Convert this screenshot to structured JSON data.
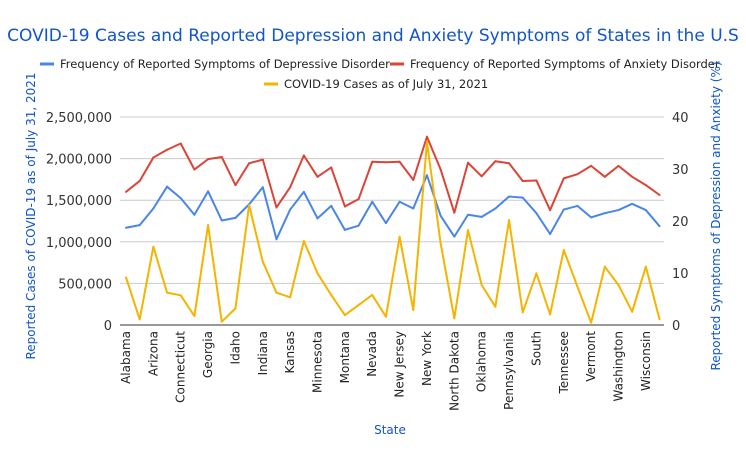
{
  "chart_data": {
    "type": "line",
    "title": "COVID-19 Cases and Reported Depression and Anxiety Symptoms of States in the U.S",
    "xlabel": "State",
    "ylabel_left": "Reported Cases of COVID-19 as of July 31, 2021",
    "ylabel_right": "Reported Symptoms of Depression and Anxiety (%)",
    "ylim_left": [
      0,
      2500000
    ],
    "ylim_right": [
      0,
      40
    ],
    "yticks_left": [
      "0",
      "500,000",
      "1,000,000",
      "1,500,000",
      "2,000,000",
      "2,500,000"
    ],
    "yticks_right": [
      "0",
      "10",
      "20",
      "30",
      "40"
    ],
    "grid": true,
    "legend_position": "top",
    "categories": [
      "Alabama",
      "",
      "Arizona",
      "",
      "Connecticut",
      "",
      "Georgia",
      "",
      "Idaho",
      "",
      "Indiana",
      "",
      "Kansas",
      "",
      "Minnesota",
      "",
      "Montana",
      "",
      "Nevada",
      "",
      "New Jersey",
      "",
      "New York",
      "",
      "North Dakota",
      "",
      "Oklahoma",
      "",
      "Pennsylvania",
      "",
      "South",
      "",
      "Tennessee",
      "",
      "Vermont",
      "",
      "Washington",
      "",
      "Wisconsin",
      ""
    ],
    "series": [
      {
        "name": "Frequency of Reported Symptoms of Depressive Disorder",
        "axis": "right",
        "color": "#4a86e8",
        "values": [
          18.7,
          19.2,
          22.4,
          26.6,
          24.4,
          21.2,
          25.7,
          20.1,
          20.6,
          23.2,
          26.5,
          16.5,
          22.2,
          25.6,
          20.5,
          22.9,
          18.3,
          19.1,
          23.7,
          19.6,
          23.7,
          22.4,
          28.8,
          21.0,
          17.0,
          21.2,
          20.8,
          22.4,
          24.7,
          24.5,
          21.5,
          17.5,
          22.2,
          22.9,
          20.7,
          21.5,
          22.1,
          23.3,
          22.1,
          19.0
        ]
      },
      {
        "name": "Frequency of Reported Symptoms of Anxiety Disorder",
        "axis": "right",
        "color": "#db4437",
        "values": [
          25.6,
          27.7,
          32.2,
          33.7,
          34.9,
          29.9,
          31.9,
          32.3,
          26.9,
          31.1,
          31.8,
          22.6,
          26.5,
          32.6,
          28.5,
          30.3,
          22.8,
          24.2,
          31.4,
          31.3,
          31.4,
          27.9,
          36.2,
          29.9,
          21.6,
          31.2,
          28.6,
          31.5,
          31.1,
          27.7,
          27.8,
          22.1,
          28.2,
          29.0,
          30.6,
          28.5,
          30.6,
          28.5,
          26.9,
          25.0
        ]
      },
      {
        "name": "COVID-19 Cases as of July 31, 2021",
        "axis": "left",
        "color": "#f4b400",
        "values": [
          573000,
          68000,
          941000,
          389000,
          357000,
          108000,
          1200000,
          40000,
          200000,
          1440000,
          761000,
          389000,
          333000,
          1010000,
          621000,
          361000,
          120000,
          240000,
          361000,
          100000,
          1060000,
          180000,
          2200000,
          982000,
          80000,
          1140000,
          481000,
          220000,
          1260000,
          152000,
          621000,
          128000,
          901000,
          461000,
          28000,
          701000,
          481000,
          160000,
          701000,
          68000
        ]
      }
    ]
  }
}
